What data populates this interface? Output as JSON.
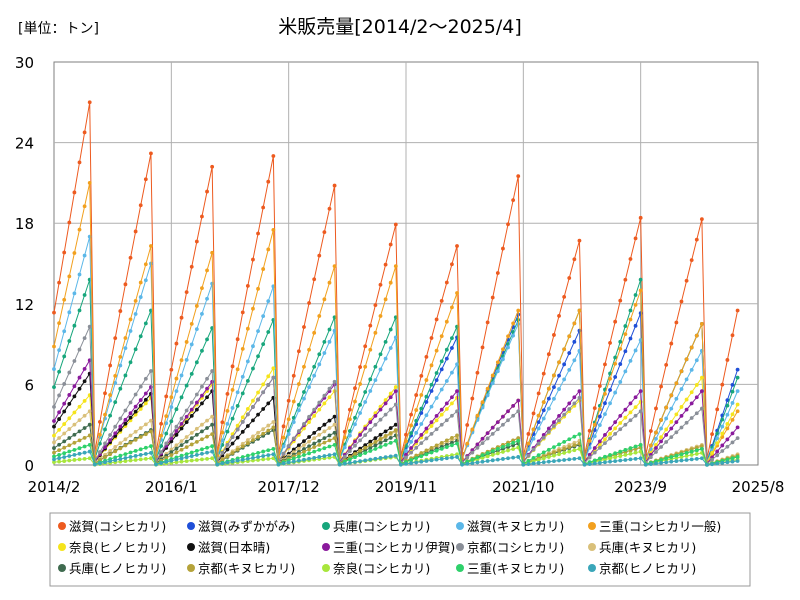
{
  "chart_data": {
    "type": "line",
    "title": "米販売量[2014/2～2025/4]",
    "unit_label": "[単位：トン]",
    "xlabel": "",
    "ylabel": "",
    "ylim": [
      0,
      30
    ],
    "yticks": [
      0,
      6,
      12,
      18,
      24,
      30
    ],
    "xlim": [
      "2014/2",
      "2025/8"
    ],
    "xticks": [
      "2014/2",
      "2016/1",
      "2017/12",
      "2019/11",
      "2021/10",
      "2023/9",
      "2025/8"
    ],
    "grid": true,
    "legend_position": "bottom",
    "season": "each season starts in October (near zero) and accumulates monthly until the following September",
    "series": [
      {
        "name": "滋賀(コシヒカリ)",
        "color": "#ED5A1F",
        "peaks": [
          27.0,
          23.2,
          22.2,
          23.0,
          20.8,
          17.9,
          16.3,
          21.5,
          16.7,
          18.4,
          18.3,
          11.5
        ]
      },
      {
        "name": "滋賀(みずかがみ)",
        "color": "#1F4FD8",
        "peaks": [
          0,
          0,
          0,
          0,
          0,
          0,
          9.5,
          11.2,
          10.0,
          11.3,
          10.5,
          7.1
        ]
      },
      {
        "name": "兵庫(コシヒカリ)",
        "color": "#17A67C",
        "peaks": [
          13.8,
          11.5,
          10.2,
          10.8,
          11.0,
          11.0,
          10.3,
          10.8,
          11.5,
          13.8,
          10.5,
          6.5
        ]
      },
      {
        "name": "滋賀(キヌヒカリ)",
        "color": "#5BB7E8",
        "peaks": [
          17.0,
          15.0,
          13.5,
          13.3,
          10.0,
          9.5,
          7.5,
          10.5,
          8.5,
          9.3,
          8.5,
          5.5
        ]
      },
      {
        "name": "三重(コシヒカリ一般)",
        "color": "#F2A01E",
        "peaks": [
          21.0,
          16.3,
          15.8,
          17.5,
          14.8,
          14.8,
          12.8,
          11.5,
          11.5,
          13.0,
          10.5,
          4.0
        ]
      },
      {
        "name": "奈良(ヒノヒカリ)",
        "color": "#F5E41C",
        "peaks": [
          5.2,
          5.0,
          6.0,
          7.2,
          5.5,
          5.8,
          5.0,
          4.8,
          4.8,
          4.7,
          6.5,
          4.5
        ]
      },
      {
        "name": "滋賀(日本晴)",
        "color": "#111111",
        "peaks": [
          6.8,
          5.3,
          5.5,
          5.0,
          3.6,
          3.0,
          0,
          0,
          0,
          0,
          0,
          0
        ]
      },
      {
        "name": "三重(コシヒカリ伊賀)",
        "color": "#8A1A9C",
        "peaks": [
          7.8,
          5.8,
          6.2,
          6.5,
          6.0,
          5.5,
          5.5,
          4.8,
          5.5,
          5.5,
          5.5,
          2.8
        ]
      },
      {
        "name": "京都(コシヒカリ)",
        "color": "#8A8F98",
        "peaks": [
          10.3,
          7.0,
          7.0,
          6.5,
          6.2,
          4.5,
          4.0,
          4.0,
          5.0,
          4.0,
          4.2,
          2.0
        ]
      },
      {
        "name": "兵庫(キヌヒカリ)",
        "color": "#D9C07A",
        "peaks": [
          4.0,
          3.3,
          3.6,
          3.2,
          3.0,
          2.5,
          2.0,
          2.0,
          1.8,
          1.5,
          1.5,
          0.8
        ]
      },
      {
        "name": "兵庫(ヒノヒカリ)",
        "color": "#3F6B4F",
        "peaks": [
          3.0,
          2.6,
          3.0,
          2.6,
          2.4,
          2.2,
          1.8,
          1.6,
          1.5,
          1.3,
          1.2,
          0.6
        ]
      },
      {
        "name": "京都(キヌヒカリ)",
        "color": "#B5A33A",
        "peaks": [
          2.2,
          2.5,
          2.3,
          2.8,
          2.0,
          2.6,
          2.2,
          2.0,
          1.6,
          1.3,
          1.4,
          0.7
        ]
      },
      {
        "name": "奈良(コシヒカリ)",
        "color": "#A8E63C",
        "peaks": [
          0.5,
          0.5,
          0.5,
          0.5,
          0.6,
          0.6,
          0.8,
          1.3,
          1.2,
          1.0,
          0.9,
          0.4
        ]
      },
      {
        "name": "三重(キヌヒカリ)",
        "color": "#2ED16B",
        "peaks": [
          1.5,
          1.4,
          1.4,
          1.2,
          1.5,
          1.8,
          1.6,
          1.8,
          2.3,
          1.5,
          1.2,
          0.6
        ]
      },
      {
        "name": "京都(ヒノヒカリ)",
        "color": "#3AA6B9",
        "peaks": [
          1.0,
          0.9,
          1.0,
          0.8,
          0.8,
          0.7,
          0.6,
          0.6,
          0.5,
          0.5,
          0.5,
          0.3
        ]
      }
    ]
  }
}
